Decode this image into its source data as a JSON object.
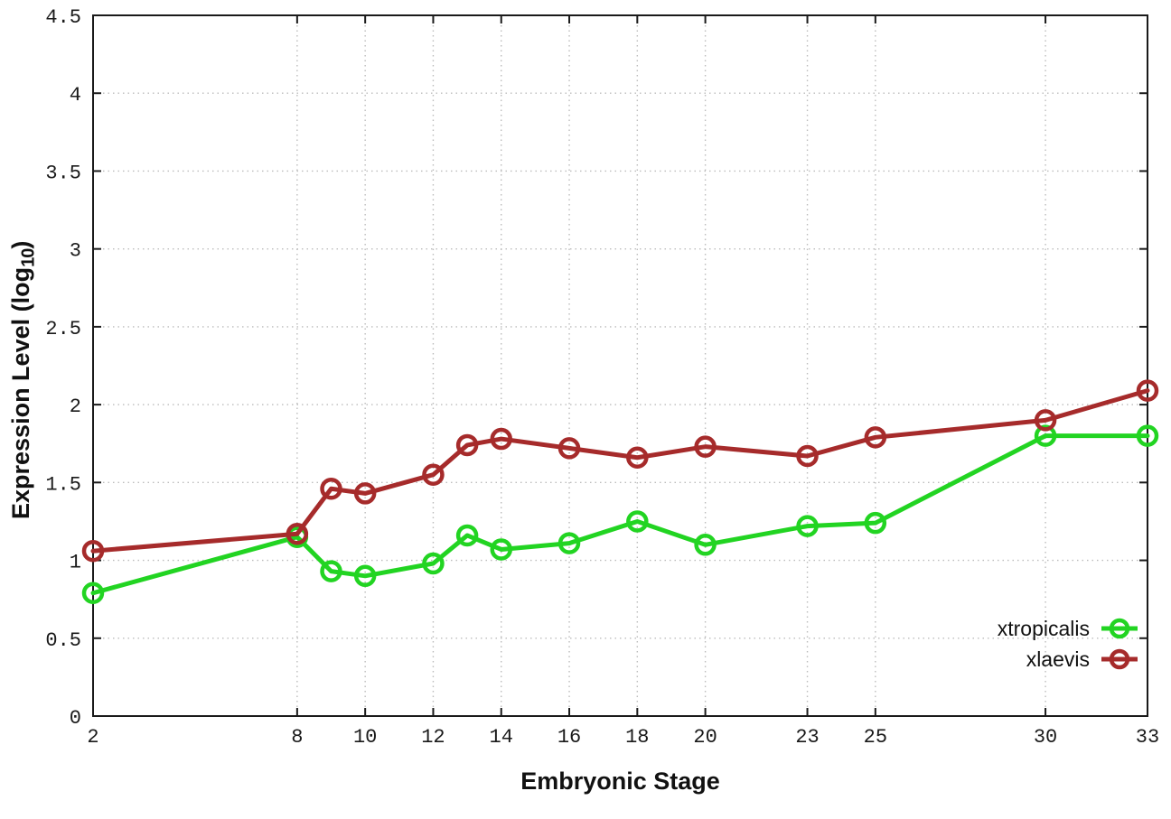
{
  "chart_data": {
    "type": "line",
    "title": "",
    "xlabel": "Embryonic Stage",
    "ylabel": {
      "prefix": "Expression Level (log",
      "sub": "10",
      "suffix": ")"
    },
    "x": [
      2,
      8,
      9,
      10,
      12,
      13,
      14,
      16,
      18,
      20,
      23,
      25,
      30,
      33
    ],
    "x_tick_values": [
      2,
      8,
      10,
      12,
      14,
      16,
      18,
      20,
      23,
      25,
      30,
      33
    ],
    "x_tick_labels": [
      "2",
      "8",
      "10",
      "12",
      "14",
      "16",
      "18",
      "20",
      "23",
      "25",
      "30",
      "33"
    ],
    "y_tick_values": [
      0,
      0.5,
      1,
      1.5,
      2,
      2.5,
      3,
      3.5,
      4,
      4.5
    ],
    "y_tick_labels": [
      "0",
      "0.5",
      "1",
      "1.5",
      "2",
      "2.5",
      "3",
      "3.5",
      "4",
      "4.5"
    ],
    "xlim": [
      2,
      33
    ],
    "ylim": [
      0,
      4.5
    ],
    "grid": true,
    "legend_position": "inside-bottom-right",
    "axis_color": "#1a1a1a",
    "grid_color": "#bcbcbc",
    "series": [
      {
        "name": "xtropicalis",
        "color": "#22d422",
        "values": [
          0.79,
          1.15,
          0.93,
          0.9,
          0.98,
          1.16,
          1.07,
          1.11,
          1.25,
          1.1,
          1.22,
          1.24,
          1.8,
          1.8
        ]
      },
      {
        "name": "xlaevis",
        "color": "#a62b2b",
        "values": [
          1.06,
          1.17,
          1.46,
          1.43,
          1.55,
          1.74,
          1.78,
          1.72,
          1.66,
          1.73,
          1.67,
          1.79,
          1.9,
          2.09
        ]
      }
    ]
  }
}
